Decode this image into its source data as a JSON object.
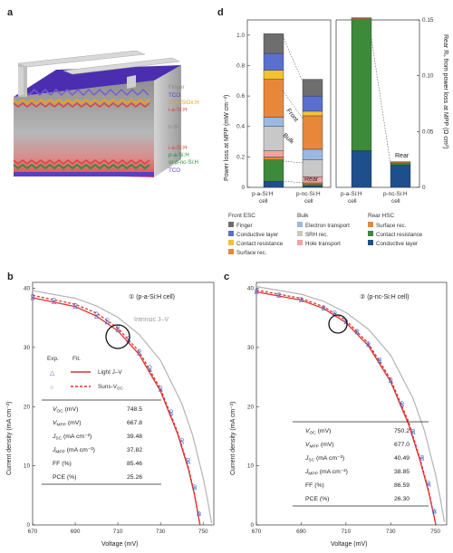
{
  "panel_a": {
    "letter": "a",
    "layers": [
      "Finger",
      "TCO",
      "n-nc-SiOx:H",
      "i-a-Si:H",
      "n-Si",
      "i-a-Si:H",
      "p-a-Si:H",
      "or p-nc-Si:H",
      "TCO"
    ],
    "colors": {
      "finger": "#b8b8b8",
      "tco": "#5a3fc0",
      "n_layer": "#e8a020",
      "i_layer": "#e04040",
      "nsi": "#9a9a9a",
      "p_layer": "#2f8f3a",
      "label_grey": "#8a8a8a"
    }
  },
  "panel_d": {
    "letter": "d",
    "ylabel_left": "Power loss at MPP (mW cm⁻²)",
    "ylabel_right": "Rear Rₛ from power loss at MPP (Ω cm²)",
    "left_ticks": [
      "0",
      "0.2",
      "0.4",
      "0.6",
      "0.8",
      "1.0"
    ],
    "right_ticks": [
      "0",
      "0.05",
      "0.10",
      "0.15"
    ],
    "categories_left": [
      "p-a-Si:H\ncell",
      "p-nc-Si:H\ncell"
    ],
    "categories_right": [
      "p-a-Si:H\ncell",
      "p-nc-Si:H\ncell"
    ],
    "annot_front": "Front",
    "annot_bulk": "Bulk",
    "annot_rear_left": "Rear",
    "annot_rear_right": "Rear",
    "legend": {
      "front_title": "Front ESC",
      "front_items": [
        "Finger",
        "Conductive layer",
        "Contact resistance",
        "Surface rec."
      ],
      "bulk_title": "Bulk",
      "bulk_items": [
        "Electron transport",
        "SRH rec.",
        "Hole transport"
      ],
      "rear_title": "Rear HSC",
      "rear_items": [
        "Surface rec.",
        "Contact resistance",
        "Conductive layer"
      ]
    }
  },
  "panel_b": {
    "letter": "b",
    "title": "① (p-a-Si:H cell)",
    "intrinsic_label": "Intrinsic J–V",
    "ylabel": "Current density (mA cm⁻²)",
    "xlabel": "Voltage (mV)",
    "legend_exp": "Exp.",
    "legend_fit": "Fit.",
    "legend_light": "Light J–V",
    "legend_suns": "Suns-V",
    "legend_suns_sub": "OC",
    "table": [
      {
        "param": "V_OC (mV)",
        "value": "748.5"
      },
      {
        "param": "V_MPP (mV)",
        "value": "667.8"
      },
      {
        "param": "J_SC (mA cm⁻²)",
        "value": "39.48"
      },
      {
        "param": "J_MPP (mA cm⁻²)",
        "value": "37.82"
      },
      {
        "param": "FF (%)",
        "value": "85.46"
      },
      {
        "param": "PCE (%)",
        "value": "25.26"
      }
    ]
  },
  "panel_c": {
    "letter": "c",
    "title": "② (p-nc-Si:H cell)",
    "ylabel": "Current density (mA cm⁻²)",
    "xlabel": "Voltage (mV)",
    "table": [
      {
        "param": "V_OC (mV)",
        "value": "750.2"
      },
      {
        "param": "V_MPP (mV)",
        "value": "677.0"
      },
      {
        "param": "J_SC (mA cm⁻²)",
        "value": "40.49"
      },
      {
        "param": "J_MPP (mA cm⁻²)",
        "value": "38.85"
      },
      {
        "param": "FF (%)",
        "value": "86.59"
      },
      {
        "param": "PCE (%)",
        "value": "26.30"
      }
    ]
  },
  "chart_data": [
    {
      "type": "bar",
      "stacked": true,
      "categories": [
        "p-a-Si:H cell",
        "p-nc-Si:H cell"
      ],
      "ylim": [
        0,
        1.1
      ],
      "series": [
        {
          "name": "Rear HSC Conductive layer",
          "color": "#1e4f8c",
          "values": [
            0.04,
            0.01
          ]
        },
        {
          "name": "Rear HSC Contact resistance",
          "color": "#3c8a3a",
          "values": [
            0.14,
            0.01
          ]
        },
        {
          "name": "Rear HSC Surface rec.",
          "color": "#e8873a",
          "values": [
            0.02,
            0.01
          ]
        },
        {
          "name": "Bulk Hole transport",
          "color": "#f2a3a3",
          "values": [
            0.04,
            0.04
          ]
        },
        {
          "name": "Bulk SRH rec.",
          "color": "#c8c8c8",
          "values": [
            0.16,
            0.11
          ]
        },
        {
          "name": "Bulk Electron transport",
          "color": "#9bb8e0",
          "values": [
            0.06,
            0.07
          ]
        },
        {
          "name": "Front ESC Surface rec.",
          "color": "#e8873a",
          "values": [
            0.25,
            0.22
          ]
        },
        {
          "name": "Front ESC Contact resistance",
          "color": "#f2c230",
          "values": [
            0.06,
            0.03
          ]
        },
        {
          "name": "Front ESC Conductive layer",
          "color": "#5a6fcf",
          "values": [
            0.11,
            0.1
          ]
        },
        {
          "name": "Front ESC Finger",
          "color": "#6e6e6e",
          "values": [
            0.13,
            0.11
          ]
        }
      ]
    },
    {
      "type": "bar",
      "stacked": true,
      "categories": [
        "p-a-Si:H cell",
        "p-nc-Si:H cell"
      ],
      "ylim": [
        0,
        0.15
      ],
      "series": [
        {
          "name": "Rear HSC Conductive layer",
          "color": "#1e4f8c",
          "values": [
            0.033,
            0.02
          ]
        },
        {
          "name": "Rear HSC Contact resistance",
          "color": "#3c8a3a",
          "values": [
            0.118,
            0.002
          ]
        },
        {
          "name": "Rear HSC Surface rec.",
          "color": "#e8873a",
          "values": [
            0.001,
            0.001
          ]
        }
      ]
    },
    {
      "type": "line",
      "xlabel": "Voltage (mV)",
      "ylabel": "Current density (mA cm⁻²)",
      "xlim": [
        670,
        755
      ],
      "ylim": [
        0,
        41
      ],
      "xticks": [
        670,
        690,
        710,
        730,
        750
      ],
      "yticks": [
        0,
        10,
        20,
        30,
        40
      ],
      "series": [
        {
          "name": "Intrinsic J–V",
          "color": "#b4b4b4",
          "x": [
            670,
            690,
            700,
            710,
            720,
            730,
            740,
            745,
            750,
            752,
            754
          ],
          "y": [
            39.6,
            38.3,
            37.0,
            35.1,
            32.2,
            27.8,
            20.5,
            15.2,
            8.0,
            4.4,
            0.3
          ]
        },
        {
          "name": "Light J–V",
          "color": "#e03030",
          "x": [
            670,
            690,
            700,
            710,
            720,
            730,
            738,
            743,
            746,
            748.5
          ],
          "y": [
            38.4,
            36.9,
            35.3,
            32.8,
            28.8,
            22.6,
            15.4,
            9.5,
            5.0,
            0.0
          ]
        },
        {
          "name": "Suns-VOC",
          "color": "#e03030",
          "x": [
            670,
            690,
            700,
            710,
            720,
            730,
            738,
            743,
            746,
            748.5
          ],
          "y": [
            38.8,
            37.3,
            35.8,
            33.3,
            29.3,
            23.0,
            15.7,
            9.8,
            5.2,
            0.0
          ]
        },
        {
          "name": "Light J–V exp.",
          "color": "#4a68c0",
          "x": [
            670,
            680,
            690,
            700,
            705,
            710,
            715,
            720,
            725,
            730,
            735,
            740,
            743,
            746,
            748
          ],
          "y": [
            38.3,
            37.6,
            36.8,
            35.2,
            34.2,
            32.9,
            31.1,
            28.9,
            26.2,
            22.8,
            18.8,
            14.0,
            10.6,
            6.2,
            1.8
          ]
        },
        {
          "name": "Suns-VOC exp.",
          "color": "#4a68c0",
          "x": [
            670,
            680,
            690,
            700,
            705,
            710,
            715,
            720,
            725,
            730,
            735,
            740,
            743,
            746,
            748
          ],
          "y": [
            38.7,
            38.1,
            37.2,
            35.7,
            34.7,
            33.4,
            31.6,
            29.4,
            26.7,
            23.2,
            19.2,
            14.4,
            11.0,
            6.5,
            2.0
          ]
        }
      ]
    },
    {
      "type": "line",
      "xlabel": "Voltage (mV)",
      "ylabel": "Current density (mA cm⁻²)",
      "xlim": [
        670,
        755
      ],
      "ylim": [
        0,
        41
      ],
      "xticks": [
        670,
        690,
        710,
        730,
        750
      ],
      "yticks": [
        0,
        10,
        20,
        30,
        40
      ],
      "series": [
        {
          "name": "Intrinsic J–V",
          "color": "#b4b4b4",
          "x": [
            670,
            690,
            700,
            710,
            720,
            730,
            740,
            745,
            750,
            752,
            754
          ],
          "y": [
            40.3,
            39.0,
            37.8,
            35.9,
            33.1,
            28.7,
            21.4,
            16.0,
            8.6,
            4.8,
            0.5
          ]
        },
        {
          "name": "Light J–V",
          "color": "#e03030",
          "x": [
            670,
            690,
            700,
            710,
            720,
            730,
            738,
            743,
            747,
            750.2
          ],
          "y": [
            39.4,
            38.0,
            36.6,
            34.2,
            30.3,
            24.2,
            17.0,
            11.0,
            5.5,
            0.0
          ]
        },
        {
          "name": "Suns-VOC",
          "color": "#e03030",
          "x": [
            670,
            690,
            700,
            710,
            720,
            730,
            738,
            743,
            747,
            750.2
          ],
          "y": [
            39.7,
            38.3,
            36.9,
            34.6,
            30.7,
            24.6,
            17.4,
            11.3,
            5.8,
            0.0
          ]
        },
        {
          "name": "Light J–V exp.",
          "color": "#4a68c0",
          "x": [
            670,
            680,
            690,
            700,
            705,
            710,
            715,
            720,
            725,
            730,
            735,
            740,
            744,
            747,
            749.5
          ],
          "y": [
            39.3,
            38.7,
            37.9,
            36.5,
            35.6,
            34.2,
            32.5,
            30.4,
            27.7,
            24.3,
            20.3,
            15.6,
            11.2,
            6.8,
            2.2
          ]
        },
        {
          "name": "Suns-VOC exp.",
          "color": "#4a68c0",
          "x": [
            670,
            680,
            690,
            700,
            705,
            710,
            715,
            720,
            725,
            730,
            735,
            740,
            744,
            747,
            749.5
          ],
          "y": [
            39.6,
            39.0,
            38.2,
            36.8,
            35.9,
            34.5,
            32.8,
            30.7,
            28.0,
            24.6,
            20.6,
            15.9,
            11.5,
            7.1,
            2.4
          ]
        }
      ]
    }
  ]
}
